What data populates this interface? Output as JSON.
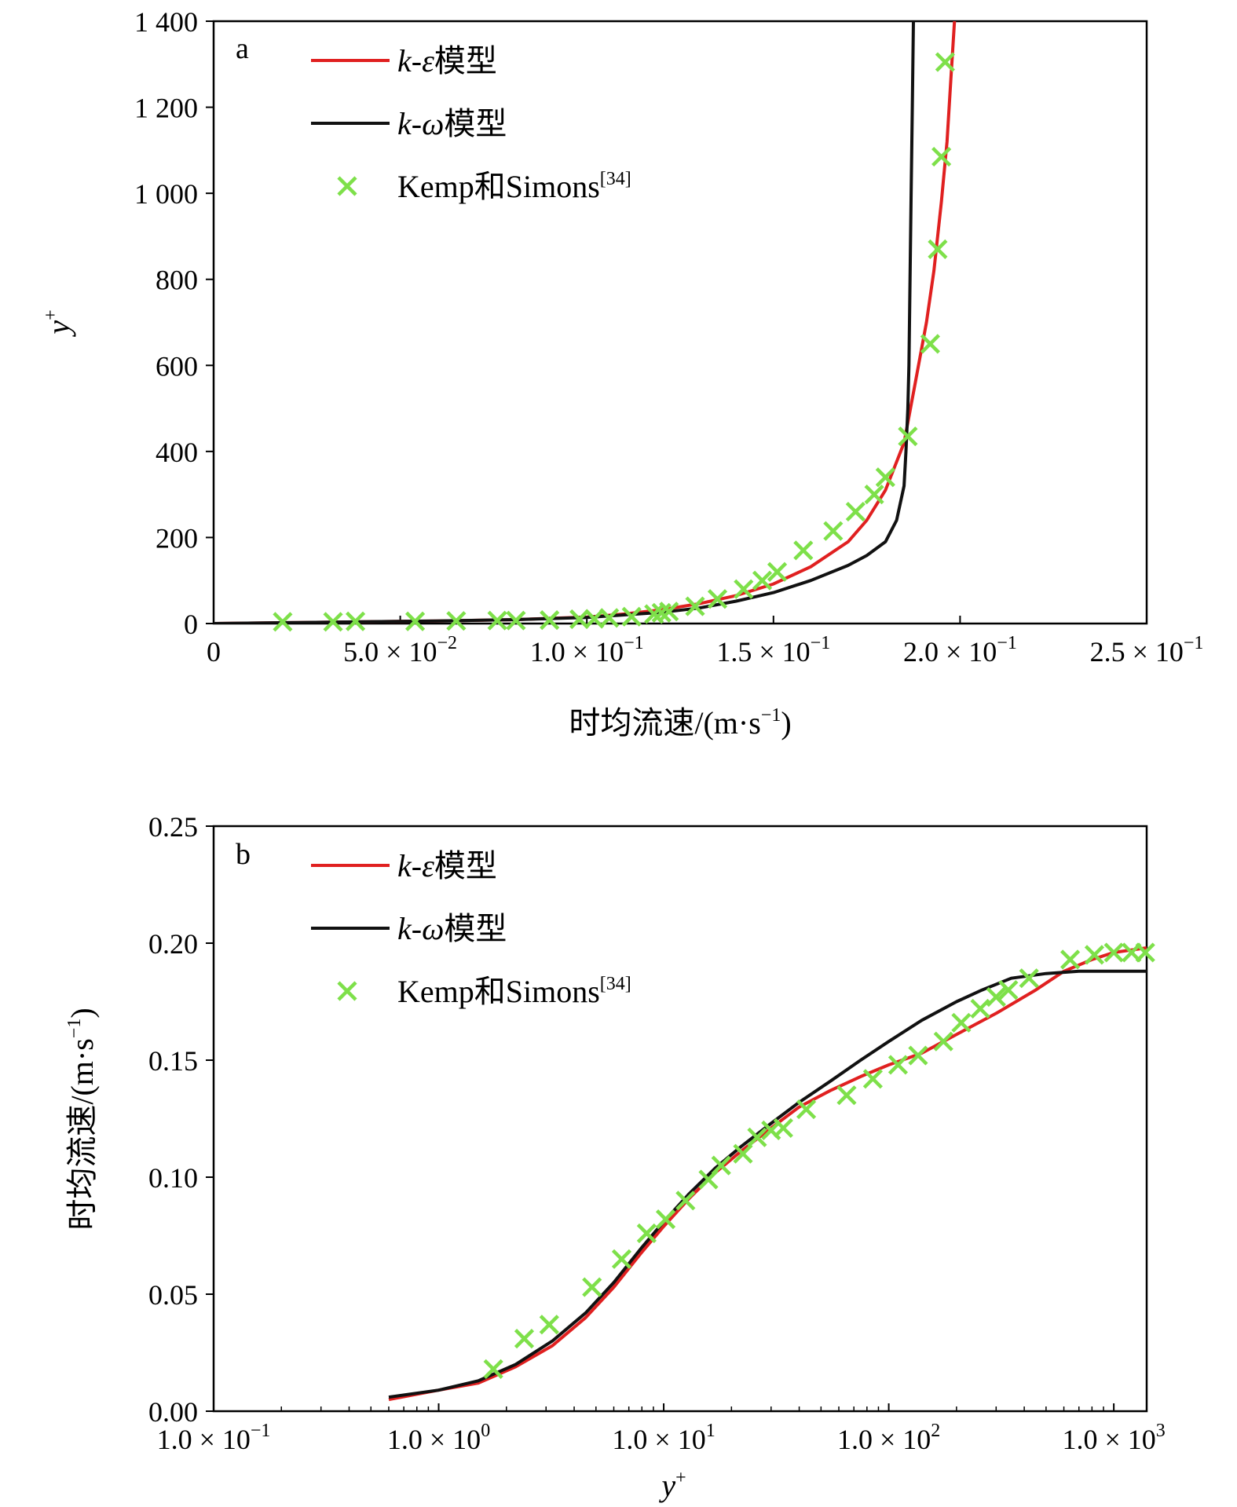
{
  "colors": {
    "ke": "#e02020",
    "kw": "#111111",
    "exp": "#7ee04a"
  },
  "chart_data": [
    {
      "type": "line",
      "panel_label": "a",
      "xlabel": "时均流速/(m·s⁻¹)",
      "ylabel": "y⁺",
      "xlim": [
        0,
        0.25
      ],
      "ylim": [
        0,
        1400
      ],
      "x_ticks": [
        {
          "v": 0,
          "label": "0"
        },
        {
          "v": 0.05,
          "label": "5.0 × 10⁻²"
        },
        {
          "v": 0.1,
          "label": "1.0 × 10⁻¹"
        },
        {
          "v": 0.15,
          "label": "1.5 × 10⁻¹"
        },
        {
          "v": 0.2,
          "label": "2.0 × 10⁻¹"
        },
        {
          "v": 0.25,
          "label": "2.5 × 10⁻¹"
        }
      ],
      "y_ticks": [
        {
          "v": 0,
          "label": "0"
        },
        {
          "v": 200,
          "label": "200"
        },
        {
          "v": 400,
          "label": "400"
        },
        {
          "v": 600,
          "label": "600"
        },
        {
          "v": 800,
          "label": "800"
        },
        {
          "v": 1000,
          "label": "1 000"
        },
        {
          "v": 1200,
          "label": "1 200"
        },
        {
          "v": 1400,
          "label": "1 400"
        }
      ],
      "legend": [
        "k-ε模型",
        "k-ω模型",
        "Kemp和Simons[34]"
      ],
      "series": [
        {
          "name": "k-ε模型",
          "style": "line",
          "points": [
            [
              0,
              0
            ],
            [
              0.02,
              2
            ],
            [
              0.04,
              4
            ],
            [
              0.06,
              6
            ],
            [
              0.08,
              9
            ],
            [
              0.1,
              15
            ],
            [
              0.11,
              22
            ],
            [
              0.12,
              32
            ],
            [
              0.13,
              46
            ],
            [
              0.14,
              65
            ],
            [
              0.15,
              92
            ],
            [
              0.16,
              132
            ],
            [
              0.17,
              190
            ],
            [
              0.175,
              240
            ],
            [
              0.18,
              310
            ],
            [
              0.185,
              420
            ],
            [
              0.188,
              560
            ],
            [
              0.191,
              700
            ],
            [
              0.193,
              820
            ],
            [
              0.195,
              980
            ],
            [
              0.1965,
              1120
            ],
            [
              0.1975,
              1260
            ],
            [
              0.1985,
              1400
            ]
          ]
        },
        {
          "name": "k-ω模型",
          "style": "line",
          "points": [
            [
              0,
              0
            ],
            [
              0.02,
              2
            ],
            [
              0.04,
              4
            ],
            [
              0.06,
              6
            ],
            [
              0.08,
              9
            ],
            [
              0.1,
              14
            ],
            [
              0.12,
              26
            ],
            [
              0.13,
              36
            ],
            [
              0.14,
              52
            ],
            [
              0.15,
              72
            ],
            [
              0.16,
              100
            ],
            [
              0.17,
              135
            ],
            [
              0.175,
              158
            ],
            [
              0.18,
              190
            ],
            [
              0.183,
              240
            ],
            [
              0.185,
              320
            ],
            [
              0.1855,
              400
            ],
            [
              0.186,
              500
            ],
            [
              0.1863,
              600
            ],
            [
              0.1866,
              800
            ],
            [
              0.1869,
              1000
            ],
            [
              0.1872,
              1200
            ],
            [
              0.1875,
              1400
            ]
          ]
        },
        {
          "name": "Kemp和Simons[34]",
          "style": "marker",
          "points": [
            [
              0.0185,
              4
            ],
            [
              0.032,
              4
            ],
            [
              0.038,
              5
            ],
            [
              0.054,
              5
            ],
            [
              0.065,
              6
            ],
            [
              0.076,
              7
            ],
            [
              0.081,
              7
            ],
            [
              0.09,
              8
            ],
            [
              0.098,
              10
            ],
            [
              0.102,
              11
            ],
            [
              0.106,
              13
            ],
            [
              0.112,
              16
            ],
            [
              0.118,
              22
            ],
            [
              0.12,
              25
            ],
            [
              0.122,
              28
            ],
            [
              0.129,
              40
            ],
            [
              0.135,
              57
            ],
            [
              0.142,
              80
            ],
            [
              0.147,
              100
            ],
            [
              0.151,
              120
            ],
            [
              0.158,
              170
            ],
            [
              0.166,
              215
            ],
            [
              0.172,
              260
            ],
            [
              0.177,
              300
            ],
            [
              0.18,
              340
            ],
            [
              0.186,
              435
            ],
            [
              0.192,
              650
            ],
            [
              0.194,
              870
            ],
            [
              0.195,
              1085
            ],
            [
              0.196,
              1305
            ]
          ]
        }
      ]
    },
    {
      "type": "line",
      "panel_label": "b",
      "xlabel": "y⁺",
      "ylabel": "时均流速/(m·s⁻¹)",
      "x_scale": "log",
      "xlim": [
        0.1,
        1400
      ],
      "ylim": [
        0,
        0.25
      ],
      "x_ticks": [
        {
          "v": 0.1,
          "label": "1.0 × 10⁻¹"
        },
        {
          "v": 1,
          "label": "1.0 × 10⁰"
        },
        {
          "v": 10,
          "label": "1.0 × 10¹"
        },
        {
          "v": 100,
          "label": "1.0 × 10²"
        },
        {
          "v": 1000,
          "label": "1.0 × 10³"
        }
      ],
      "y_ticks": [
        {
          "v": 0,
          "label": "0.00"
        },
        {
          "v": 0.05,
          "label": "0.05"
        },
        {
          "v": 0.1,
          "label": "0.10"
        },
        {
          "v": 0.15,
          "label": "0.15"
        },
        {
          "v": 0.2,
          "label": "0.20"
        },
        {
          "v": 0.25,
          "label": "0.25"
        }
      ],
      "legend": [
        "k-ε模型",
        "k-ω模型",
        "Kemp和Simons[34]"
      ],
      "series": [
        {
          "name": "k-ε模型",
          "style": "line",
          "points": [
            [
              0.6,
              0.005
            ],
            [
              1.0,
              0.009
            ],
            [
              1.5,
              0.012
            ],
            [
              2.2,
              0.019
            ],
            [
              3.2,
              0.028
            ],
            [
              4.5,
              0.04
            ],
            [
              6.0,
              0.053
            ],
            [
              8.0,
              0.068
            ],
            [
              10,
              0.079
            ],
            [
              13,
              0.091
            ],
            [
              17,
              0.102
            ],
            [
              22,
              0.111
            ],
            [
              30,
              0.121
            ],
            [
              40,
              0.13
            ],
            [
              55,
              0.137
            ],
            [
              75,
              0.143
            ],
            [
              100,
              0.148
            ],
            [
              140,
              0.153
            ],
            [
              200,
              0.161
            ],
            [
              300,
              0.17
            ],
            [
              450,
              0.18
            ],
            [
              600,
              0.188
            ],
            [
              800,
              0.193
            ],
            [
              1000,
              0.196
            ],
            [
              1400,
              0.198
            ]
          ]
        },
        {
          "name": "k-ω模型",
          "style": "line",
          "points": [
            [
              0.6,
              0.006
            ],
            [
              1.0,
              0.009
            ],
            [
              1.5,
              0.013
            ],
            [
              2.2,
              0.02
            ],
            [
              3.2,
              0.03
            ],
            [
              4.5,
              0.042
            ],
            [
              6.0,
              0.055
            ],
            [
              8.0,
              0.07
            ],
            [
              10,
              0.081
            ],
            [
              13,
              0.093
            ],
            [
              17,
              0.104
            ],
            [
              22,
              0.113
            ],
            [
              30,
              0.123
            ],
            [
              40,
              0.132
            ],
            [
              55,
              0.141
            ],
            [
              75,
              0.15
            ],
            [
              100,
              0.158
            ],
            [
              140,
              0.167
            ],
            [
              200,
              0.175
            ],
            [
              260,
              0.18
            ],
            [
              350,
              0.185
            ],
            [
              500,
              0.187
            ],
            [
              700,
              0.188
            ],
            [
              1000,
              0.188
            ],
            [
              1400,
              0.188
            ]
          ]
        },
        {
          "name": "Kemp和Simons[34]",
          "style": "marker",
          "points": [
            [
              1.75,
              0.018
            ],
            [
              2.4,
              0.031
            ],
            [
              3.1,
              0.037
            ],
            [
              4.8,
              0.053
            ],
            [
              6.5,
              0.065
            ],
            [
              8.4,
              0.076
            ],
            [
              10.2,
              0.082
            ],
            [
              12.5,
              0.09
            ],
            [
              15.8,
              0.099
            ],
            [
              18.0,
              0.105
            ],
            [
              22.5,
              0.11
            ],
            [
              26.0,
              0.117
            ],
            [
              30.0,
              0.12
            ],
            [
              34.0,
              0.121
            ],
            [
              43.0,
              0.129
            ],
            [
              65.0,
              0.135
            ],
            [
              85.0,
              0.142
            ],
            [
              110,
              0.148
            ],
            [
              135,
              0.152
            ],
            [
              175,
              0.158
            ],
            [
              210,
              0.166
            ],
            [
              255,
              0.172
            ],
            [
              300,
              0.177
            ],
            [
              340,
              0.18
            ],
            [
              420,
              0.185
            ],
            [
              640,
              0.193
            ],
            [
              820,
              0.195
            ],
            [
              1000,
              0.196
            ],
            [
              1200,
              0.196
            ],
            [
              1380,
              0.196
            ]
          ]
        }
      ]
    }
  ]
}
